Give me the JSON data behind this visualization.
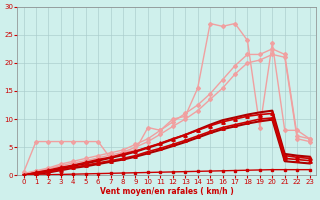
{
  "xlabel": "Vent moyen/en rafales ( km/h )",
  "x_ticks": [
    0,
    1,
    2,
    3,
    4,
    5,
    6,
    7,
    8,
    9,
    10,
    11,
    12,
    13,
    14,
    15,
    16,
    17,
    18,
    19,
    20,
    21,
    22,
    23
  ],
  "y_ticks": [
    0,
    5,
    10,
    15,
    20,
    25,
    30
  ],
  "xlim": [
    -0.5,
    23.5
  ],
  "ylim": [
    0,
    30
  ],
  "background_color": "#cff0ec",
  "grid_color": "#aacccc",
  "series": [
    {
      "name": "linear_upper1",
      "x": [
        0,
        1,
        2,
        3,
        4,
        5,
        6,
        7,
        8,
        9,
        10,
        11,
        12,
        13,
        14,
        15,
        16,
        17,
        18,
        19,
        20,
        21,
        22,
        23
      ],
      "y": [
        0.3,
        0.8,
        1.3,
        2.0,
        2.5,
        3.0,
        3.5,
        4.0,
        4.5,
        5.5,
        6.5,
        8.0,
        9.5,
        11.0,
        12.5,
        14.5,
        17.0,
        19.5,
        21.5,
        21.5,
        22.5,
        21.5,
        7.0,
        6.5
      ],
      "color": "#f0a0a0",
      "linewidth": 1.0,
      "marker": "D",
      "markersize": 2.0,
      "zorder": 2
    },
    {
      "name": "linear_upper2",
      "x": [
        0,
        1,
        2,
        3,
        4,
        5,
        6,
        7,
        8,
        9,
        10,
        11,
        12,
        13,
        14,
        15,
        16,
        17,
        18,
        19,
        20,
        21,
        22,
        23
      ],
      "y": [
        0.2,
        0.7,
        1.1,
        1.7,
        2.2,
        2.6,
        3.1,
        3.6,
        4.1,
        5.0,
        6.0,
        7.3,
        8.7,
        10.0,
        11.5,
        13.5,
        15.5,
        18.0,
        20.0,
        20.5,
        21.5,
        21.0,
        6.5,
        6.0
      ],
      "color": "#f0a0a0",
      "linewidth": 1.0,
      "marker": "D",
      "markersize": 2.0,
      "zorder": 2
    },
    {
      "name": "jagged_peak",
      "x": [
        0,
        1,
        2,
        3,
        4,
        5,
        6,
        7,
        8,
        9,
        10,
        11,
        12,
        13,
        14,
        15,
        16,
        17,
        18,
        19,
        20,
        21,
        22,
        23
      ],
      "y": [
        0.5,
        6.0,
        6.0,
        6.0,
        6.0,
        6.0,
        6.0,
        3.0,
        4.0,
        4.5,
        8.5,
        8.0,
        10.0,
        10.5,
        15.5,
        27.0,
        26.5,
        27.0,
        24.0,
        8.5,
        23.5,
        8.0,
        8.0,
        6.5
      ],
      "color": "#f0a0a0",
      "linewidth": 1.0,
      "marker": "D",
      "markersize": 2.0,
      "zorder": 3
    },
    {
      "name": "dark_linear_upper",
      "x": [
        0,
        1,
        2,
        3,
        4,
        5,
        6,
        7,
        8,
        9,
        10,
        11,
        12,
        13,
        14,
        15,
        16,
        17,
        18,
        19,
        20,
        21,
        22,
        23
      ],
      "y": [
        0.0,
        0.5,
        0.9,
        1.4,
        1.8,
        2.3,
        2.8,
        3.2,
        3.8,
        4.3,
        5.0,
        5.7,
        6.5,
        7.2,
        8.0,
        8.8,
        9.5,
        10.0,
        10.5,
        10.8,
        11.0,
        3.5,
        3.2,
        3.0
      ],
      "color": "#cc0000",
      "linewidth": 1.2,
      "marker": "^",
      "markersize": 2.5,
      "zorder": 5
    },
    {
      "name": "dark_linear_mid",
      "x": [
        0,
        1,
        2,
        3,
        4,
        5,
        6,
        7,
        8,
        9,
        10,
        11,
        12,
        13,
        14,
        15,
        16,
        17,
        18,
        19,
        20,
        21,
        22,
        23
      ],
      "y": [
        0.0,
        0.3,
        0.6,
        1.0,
        1.4,
        1.8,
        2.2,
        2.6,
        3.0,
        3.5,
        4.2,
        4.8,
        5.5,
        6.2,
        7.0,
        7.8,
        8.5,
        9.0,
        9.5,
        10.0,
        10.2,
        3.0,
        2.8,
        2.6
      ],
      "color": "#cc0000",
      "linewidth": 1.2,
      "marker": "^",
      "markersize": 2.5,
      "zorder": 5
    },
    {
      "name": "dark_smooth_line1",
      "x": [
        0,
        1,
        2,
        3,
        4,
        5,
        6,
        7,
        8,
        9,
        10,
        11,
        12,
        13,
        14,
        15,
        16,
        17,
        18,
        19,
        20,
        21,
        22,
        23
      ],
      "y": [
        0.0,
        0.4,
        0.8,
        1.2,
        1.7,
        2.1,
        2.6,
        3.1,
        3.6,
        4.2,
        4.9,
        5.6,
        6.4,
        7.2,
        8.1,
        9.0,
        9.8,
        10.3,
        10.8,
        11.2,
        11.5,
        3.8,
        3.5,
        3.3
      ],
      "color": "#aa0000",
      "linewidth": 1.5,
      "marker": null,
      "markersize": 0,
      "zorder": 4
    },
    {
      "name": "dark_smooth_line2",
      "x": [
        0,
        1,
        2,
        3,
        4,
        5,
        6,
        7,
        8,
        9,
        10,
        11,
        12,
        13,
        14,
        15,
        16,
        17,
        18,
        19,
        20,
        21,
        22,
        23
      ],
      "y": [
        0.0,
        0.2,
        0.5,
        0.9,
        1.3,
        1.6,
        2.0,
        2.4,
        2.8,
        3.3,
        3.9,
        4.5,
        5.2,
        5.9,
        6.7,
        7.5,
        8.2,
        8.7,
        9.2,
        9.6,
        9.9,
        2.5,
        2.3,
        2.1
      ],
      "color": "#aa0000",
      "linewidth": 1.5,
      "marker": null,
      "markersize": 0,
      "zorder": 4
    },
    {
      "name": "flat_bottom_line",
      "x": [
        0,
        1,
        2,
        3,
        4,
        5,
        6,
        7,
        8,
        9,
        10,
        11,
        12,
        13,
        14,
        15,
        16,
        17,
        18,
        19,
        20,
        21,
        22,
        23
      ],
      "y": [
        0.0,
        0.05,
        0.1,
        0.15,
        0.2,
        0.25,
        0.3,
        0.35,
        0.4,
        0.45,
        0.5,
        0.55,
        0.6,
        0.65,
        0.7,
        0.75,
        0.8,
        0.85,
        0.9,
        0.95,
        1.0,
        1.0,
        1.0,
        1.0
      ],
      "color": "#cc0000",
      "linewidth": 1.0,
      "marker": "s",
      "markersize": 1.5,
      "zorder": 5
    }
  ]
}
